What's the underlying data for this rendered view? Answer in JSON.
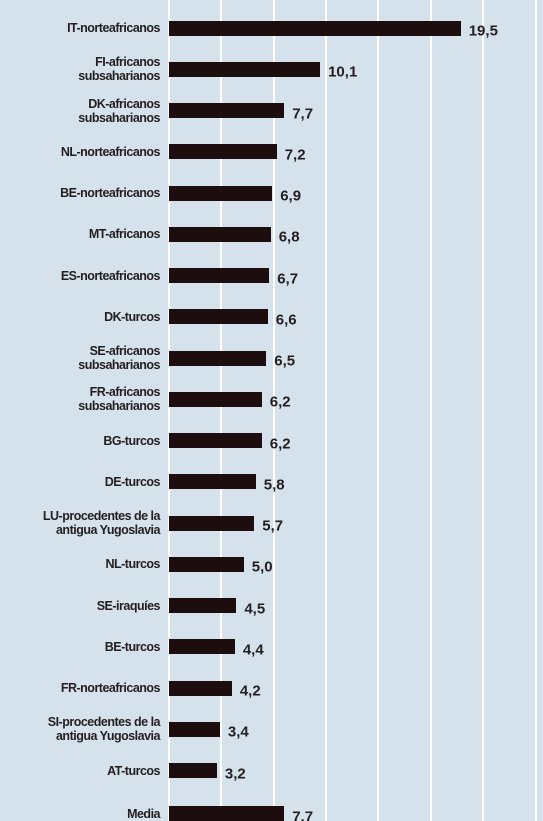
{
  "chart_data": {
    "type": "bar",
    "orientation": "horizontal",
    "categories": [
      "IT-norteafricanos",
      "FI-africanos\nsubsaharianos",
      "DK-africanos\nsubsaharianos",
      "NL-norteafricanos",
      "BE-norteafricanos",
      "MT-africanos",
      "ES-norteafricanos",
      "DK-turcos",
      "SE-africanos\nsubsaharianos",
      "FR-africanos\nsubsaharianos",
      "BG-turcos",
      "DE-turcos",
      "LU-procedentes de la\nantigua Yugoslavia",
      "NL-turcos",
      "SE-iraquíes",
      "BE-turcos",
      "FR-norteafricanos",
      "SI-procedentes de la\nantigua Yugoslavia",
      "AT-turcos",
      "Media"
    ],
    "values": [
      19.5,
      10.1,
      7.7,
      7.2,
      6.9,
      6.8,
      6.7,
      6.6,
      6.5,
      6.2,
      6.2,
      5.8,
      5.7,
      5.0,
      4.5,
      4.4,
      4.2,
      3.4,
      3.2,
      7.7
    ],
    "value_labels": [
      "19,5",
      "10,1",
      "7,7",
      "7,2",
      "6,9",
      "6,8",
      "6,7",
      "6,6",
      "6,5",
      "6,2",
      "6,2",
      "5,8",
      "5,7",
      "5,0",
      "4,5",
      "4,4",
      "4,2",
      "3,4",
      "3,2",
      "7,7"
    ],
    "color": "#1e0d0e",
    "xlim": [
      0,
      25
    ],
    "xticks": [
      0,
      3.5,
      7,
      10.5,
      14,
      17.5,
      21,
      24.5
    ],
    "grid": true
  }
}
